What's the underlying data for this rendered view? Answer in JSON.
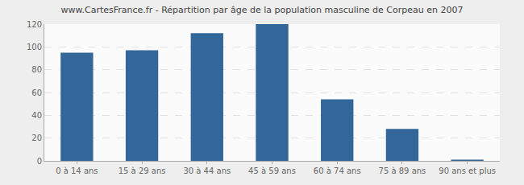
{
  "chart_data": {
    "type": "bar",
    "title": "www.CartesFrance.fr - Répartition par âge de la population masculine de Corpeau en 2007",
    "categories": [
      "0 à 14 ans",
      "15 à 29 ans",
      "30 à 44 ans",
      "45 à 59 ans",
      "60 à 74 ans",
      "75 à 89 ans",
      "90 ans et plus"
    ],
    "values": [
      95,
      97,
      112,
      120,
      54,
      28,
      1
    ],
    "color": "#336699",
    "ylim": [
      0,
      120
    ],
    "yticks": [
      0,
      20,
      40,
      60,
      80,
      100,
      120
    ],
    "grid": true
  }
}
